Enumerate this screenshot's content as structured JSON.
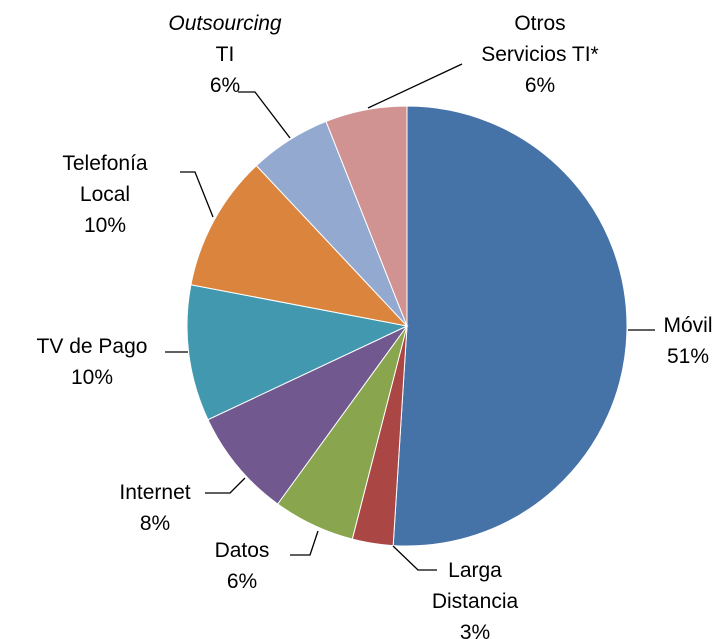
{
  "chart_data": {
    "type": "pie",
    "categories": [
      "Móvil",
      "Larga Distancia",
      "Datos",
      "Internet",
      "TV de Pago",
      "Telefonía Local",
      "Outsourcing TI",
      "Otros Servicios TI*"
    ],
    "values": [
      51,
      3,
      6,
      8,
      10,
      10,
      6,
      6
    ],
    "value_labels": [
      "51%",
      "3%",
      "6%",
      "8%",
      "10%",
      "10%",
      "6%",
      "6%"
    ],
    "colors": [
      "#4572a7",
      "#aa4643",
      "#89a54e",
      "#71588f",
      "#4198af",
      "#db843d",
      "#93a9cf",
      "#d19392"
    ]
  }
}
